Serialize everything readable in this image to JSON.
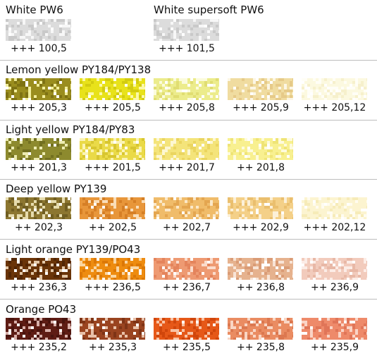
{
  "sections": [
    {
      "title": "White PW6",
      "swatches": [
        {
          "code": "+++ 100,5",
          "base": "#dcdcdc",
          "light": "#f7f7f7",
          "dark": "#c9c9c9"
        }
      ]
    },
    {
      "title": "White supersoft PW6",
      "swatches": [
        {
          "code": "+++ 101,5",
          "base": "#dcdcdc",
          "light": "#f7f7f7",
          "dark": "#c9c9c9"
        }
      ]
    },
    {
      "title": "Lemon yellow PY184/PY138",
      "swatches": [
        {
          "code": "+++ 205,3",
          "base": "#9a8d1e",
          "light": "#f2ee9a",
          "dark": "#7e7213"
        },
        {
          "code": "+++ 205,5",
          "base": "#e8e21a",
          "light": "#fbf8a8",
          "dark": "#d3cc10"
        },
        {
          "code": "+++ 205,8",
          "base": "#ecec8c",
          "light": "#fbfbdc",
          "dark": "#e0dd72"
        },
        {
          "code": "+++ 205,9",
          "base": "#f0dca0",
          "light": "#fcf6e4",
          "dark": "#e6ca88"
        },
        {
          "code": "+++ 205,12",
          "base": "#fcf9e0",
          "light": "#fffef6",
          "dark": "#f6f0cc"
        }
      ]
    },
    {
      "title": "Light yellow PY184/PY83",
      "swatches": [
        {
          "code": "+++ 201,3",
          "base": "#8d8a2e",
          "light": "#ecebb0",
          "dark": "#727020"
        },
        {
          "code": "+++ 201,5",
          "base": "#eada48",
          "light": "#fbf4b4",
          "dark": "#d8c630"
        },
        {
          "code": "+++ 201,7",
          "base": "#f4e47a",
          "light": "#fdf7d2",
          "dark": "#ead560"
        },
        {
          "code": "++ 201,8",
          "base": "#f8f090",
          "light": "#fefbdc",
          "dark": "#efe476"
        }
      ]
    },
    {
      "title": "Deep yellow PY139",
      "swatches": [
        {
          "code": "++ 202,3",
          "base": "#8c7630",
          "light": "#e6dcae",
          "dark": "#705e22"
        },
        {
          "code": "++ 202,5",
          "base": "#e8963a",
          "light": "#f9ddb8",
          "dark": "#d67f26"
        },
        {
          "code": "++ 202,7",
          "base": "#f0bc6a",
          "light": "#fbe8c8",
          "dark": "#e4a650"
        },
        {
          "code": "+++ 202,9",
          "base": "#f4d088",
          "light": "#fcf0d8",
          "dark": "#eabf6e"
        },
        {
          "code": "+++ 202,12",
          "base": "#fcf4d0",
          "light": "#fffcf0",
          "dark": "#f6ebb8"
        }
      ]
    },
    {
      "title": "Light orange PY139/PO43",
      "swatches": [
        {
          "code": "+++ 236,3",
          "base": "#6a3408",
          "light": "#e2c6a6",
          "dark": "#522604"
        },
        {
          "code": "+++ 236,5",
          "base": "#ee8c10",
          "light": "#fad6a2",
          "dark": "#dc7806"
        },
        {
          "code": "++ 236,7",
          "base": "#ee9a72",
          "light": "#fbdccc",
          "dark": "#e4845c"
        },
        {
          "code": "++ 236,8",
          "base": "#e6b28e",
          "light": "#f8e4d6",
          "dark": "#da9c76"
        },
        {
          "code": "++ 236,9",
          "base": "#f2cbbc",
          "light": "#fcece6",
          "dark": "#e8b8a6"
        }
      ]
    },
    {
      "title": "Orange PO43",
      "swatches": [
        {
          "code": "+++ 235,2",
          "base": "#5e1c14",
          "light": "#d8b0aa",
          "dark": "#4a140e"
        },
        {
          "code": "++ 235,3",
          "base": "#9a4420",
          "light": "#e8c0a8",
          "dark": "#7e3416"
        },
        {
          "code": "++ 235,5",
          "base": "#e65818",
          "light": "#f8c2a4",
          "dark": "#d0460c"
        },
        {
          "code": "++ 235,8",
          "base": "#ea8c62",
          "light": "#f9d6c4",
          "dark": "#dc7850"
        },
        {
          "code": "++ 235,9",
          "base": "#ee8a6a",
          "light": "#fad4c6",
          "dark": "#e07558"
        }
      ]
    }
  ]
}
